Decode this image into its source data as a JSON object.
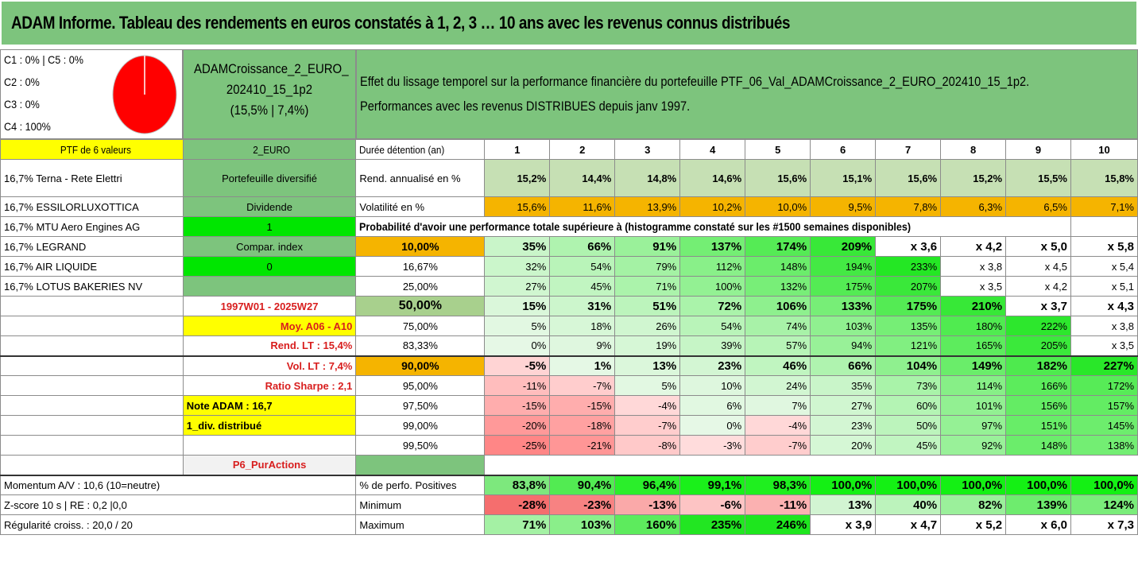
{
  "title": "ADAM Informe. Tableau des rendements en euros constatés à 1, 2, 3 … 10 ans avec les revenus connus distribués",
  "classes": [
    "C1 : 0% | C5 : 0%",
    "C2 : 0%",
    "C3 : 0%",
    "C4 : 100%"
  ],
  "pie": {
    "color": "#ff0000",
    "label": "C4 : 100%"
  },
  "fund": {
    "name_l1": "ADAMCroissance_2_EURO_",
    "name_l2": "202410_15_1p2",
    "stats": "(15,5% | 7,4%)"
  },
  "description": {
    "l1": "Effet du lissage temporel sur la performance financière du portefeuille PTF_06_Val_ADAMCroissance_2_EURO_202410_15_1p2.",
    "l2": "Performances avec les revenus DISTRIBUES depuis janv 1997."
  },
  "header_row": {
    "ptf": "PTF de 6 valeurs",
    "currency": "2_EURO",
    "duration": "Durée détention (an)",
    "years": [
      "1",
      "2",
      "3",
      "4",
      "5",
      "6",
      "7",
      "8",
      "9",
      "10"
    ]
  },
  "holdings": [
    "16,7% Terna - Rete Elettri",
    "16,7% ESSILORLUXOTTICA",
    "16,7% MTU Aero Engines AG",
    "16,7% LEGRAND",
    "16,7% AIR LIQUIDE",
    "16,7% LOTUS BAKERIES NV"
  ],
  "side_info": [
    "Portefeuille diversifié",
    "Dividende",
    "1",
    "Compar. index",
    "0",
    ""
  ],
  "rend_row": {
    "label": "Rend. annualisé en %",
    "values": [
      "15,2%",
      "14,4%",
      "14,8%",
      "14,6%",
      "15,6%",
      "15,1%",
      "15,6%",
      "15,2%",
      "15,5%",
      "15,8%"
    ]
  },
  "vol_row": {
    "label": "Volatilité en %",
    "values": [
      "15,6%",
      "11,6%",
      "13,9%",
      "10,2%",
      "10,0%",
      "9,5%",
      "7,8%",
      "6,3%",
      "6,5%",
      "7,1%"
    ]
  },
  "prob_title": "Probabilité d'avoir une performance totale supérieure à (histogramme constaté sur les #1500 semaines disponibles)",
  "period": "1997W01 - 2025W27",
  "moy": "Moy. A06 - A10",
  "rend_lt": "Rend. LT : 15,4%",
  "vol_lt": "Vol. LT : 7,4%",
  "sharpe": "Ratio Sharpe : 2,1",
  "note": "Note ADAM : 16,7",
  "div": "1_div. distribué",
  "p6": "P6_PurActions",
  "prob_rows": [
    {
      "p": "10,00%",
      "v": [
        "35%",
        "66%",
        "91%",
        "137%",
        "174%",
        "209%",
        "x 3,6",
        "x 4,2",
        "x 5,0",
        "x 5,8"
      ]
    },
    {
      "p": "16,67%",
      "v": [
        "32%",
        "54%",
        "79%",
        "112%",
        "148%",
        "194%",
        "233%",
        "x 3,8",
        "x 4,5",
        "x 5,4"
      ]
    },
    {
      "p": "25,00%",
      "v": [
        "27%",
        "45%",
        "71%",
        "100%",
        "132%",
        "175%",
        "207%",
        "x 3,5",
        "x 4,2",
        "x 5,1"
      ]
    },
    {
      "p": "50,00%",
      "v": [
        "15%",
        "31%",
        "51%",
        "72%",
        "106%",
        "133%",
        "175%",
        "210%",
        "x 3,7",
        "x 4,3"
      ]
    },
    {
      "p": "75,00%",
      "v": [
        "5%",
        "18%",
        "26%",
        "54%",
        "74%",
        "103%",
        "135%",
        "180%",
        "222%",
        "x 3,8"
      ]
    },
    {
      "p": "83,33%",
      "v": [
        "0%",
        "9%",
        "19%",
        "39%",
        "57%",
        "94%",
        "121%",
        "165%",
        "205%",
        "x 3,5"
      ]
    },
    {
      "p": "90,00%",
      "v": [
        "-5%",
        "1%",
        "13%",
        "23%",
        "46%",
        "66%",
        "104%",
        "149%",
        "182%",
        "227%"
      ]
    },
    {
      "p": "95,00%",
      "v": [
        "-11%",
        "-7%",
        "5%",
        "10%",
        "24%",
        "35%",
        "73%",
        "114%",
        "166%",
        "172%"
      ]
    },
    {
      "p": "97,50%",
      "v": [
        "-15%",
        "-15%",
        "-4%",
        "6%",
        "7%",
        "27%",
        "60%",
        "101%",
        "156%",
        "157%"
      ]
    },
    {
      "p": "99,00%",
      "v": [
        "-20%",
        "-18%",
        "-7%",
        "0%",
        "-4%",
        "23%",
        "50%",
        "97%",
        "151%",
        "145%"
      ]
    },
    {
      "p": "99,50%",
      "v": [
        "-25%",
        "-21%",
        "-8%",
        "-3%",
        "-7%",
        "20%",
        "45%",
        "92%",
        "148%",
        "138%"
      ]
    }
  ],
  "bottom_rows": [
    {
      "left": "Momentum A/V : 10,6 (10=neutre)",
      "label": "% de perfo. Positives",
      "v": [
        "83,8%",
        "90,4%",
        "96,4%",
        "99,1%",
        "98,3%",
        "100,0%",
        "100,0%",
        "100,0%",
        "100,0%",
        "100,0%"
      ]
    },
    {
      "left": "Z-score 10 s | RE : 0,2 |0,0",
      "label": "Minimum",
      "v": [
        "-28%",
        "-23%",
        "-13%",
        "-6%",
        "-11%",
        "13%",
        "40%",
        "82%",
        "139%",
        "124%"
      ]
    },
    {
      "left": "Régularité croiss. : 20,0 / 20",
      "label": "Maximum",
      "v": [
        "71%",
        "103%",
        "160%",
        "235%",
        "246%",
        "x 3,9",
        "x 4,7",
        "x 5,2",
        "x 6,0",
        "x 7,3"
      ]
    }
  ]
}
